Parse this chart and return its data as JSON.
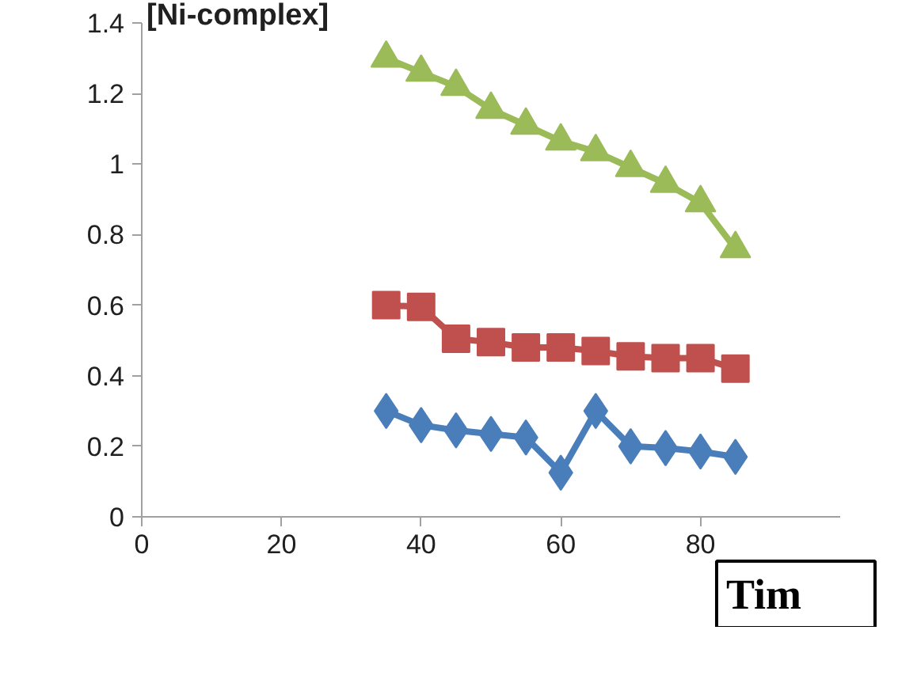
{
  "chart_data": {
    "type": "line",
    "ylabel": "[Ni-complex]",
    "x": [
      35,
      40,
      45,
      50,
      55,
      60,
      65,
      70,
      75,
      80,
      85
    ],
    "series": [
      {
        "color": "#4a7ebb",
        "marker": "diamond",
        "values": [
          0.3,
          0.26,
          0.245,
          0.235,
          0.225,
          0.125,
          0.3,
          0.2,
          0.195,
          0.185,
          0.17
        ]
      },
      {
        "color": "#c0504d",
        "marker": "square",
        "values": [
          0.6,
          0.595,
          0.505,
          0.495,
          0.48,
          0.48,
          0.47,
          0.455,
          0.45,
          0.45,
          0.42
        ]
      },
      {
        "color": "#9bbb59",
        "marker": "triangle",
        "values": [
          1.3,
          1.26,
          1.22,
          1.155,
          1.11,
          1.065,
          1.035,
          0.99,
          0.945,
          0.89,
          0.76
        ]
      }
    ],
    "xlim": [
      0,
      100
    ],
    "xticks": [
      0,
      20,
      40,
      60,
      80
    ],
    "ylim": [
      0,
      1.4
    ],
    "yticks": [
      0,
      0.2,
      0.4,
      0.6,
      0.8,
      1,
      1.2,
      1.4
    ],
    "annotations": [
      "Tim"
    ],
    "grid": false,
    "line_style": "solid"
  }
}
